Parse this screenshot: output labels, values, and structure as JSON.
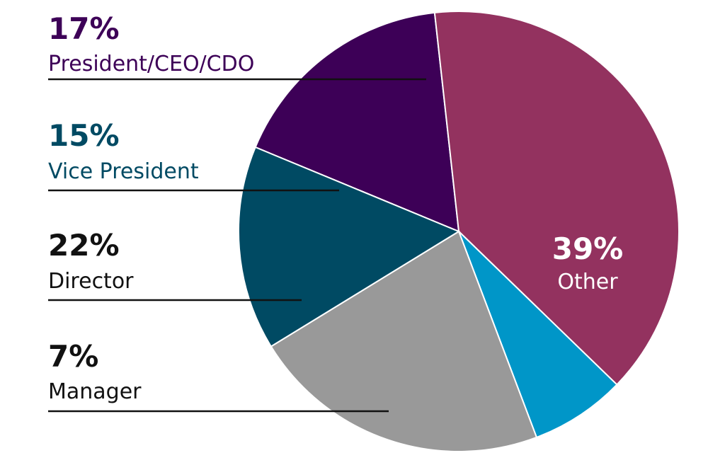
{
  "chart_data": {
    "type": "pie",
    "title": "",
    "legend": "left",
    "slices": [
      {
        "label": "President/CEO/CDO",
        "percent_label": "17%",
        "value": 17,
        "color": "#3d0057",
        "text_color": "#3d0057"
      },
      {
        "label": "Other",
        "percent_label": "39%",
        "value": 39,
        "color": "#93325f",
        "text_color": "#ffffff"
      },
      {
        "label": "Manager",
        "percent_label": "7%",
        "value": 7,
        "color": "#0096c8",
        "text_color": "#111111"
      },
      {
        "label": "Director",
        "percent_label": "22%",
        "value": 22,
        "color": "#999999",
        "text_color": "#111111"
      },
      {
        "label": "Vice President",
        "percent_label": "15%",
        "value": 15,
        "color": "#004a63",
        "text_color": "#004a63"
      }
    ]
  }
}
